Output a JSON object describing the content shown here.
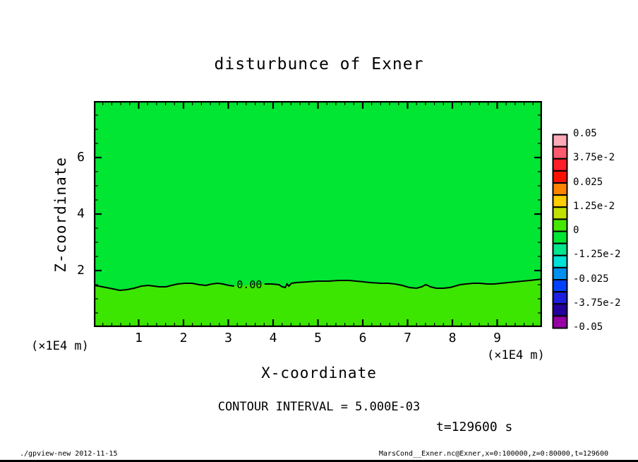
{
  "title": "disturbunce of Exner",
  "axis_x": {
    "label": "X-coordinate",
    "unit": "(×1E4 m)"
  },
  "axis_y": {
    "label": "Z-coordinate",
    "unit": "(×1E4 m)"
  },
  "contour_interval_text": "CONTOUR INTERVAL = 5.000E-03",
  "time_text": "t=129600 s",
  "footer_left": "./gpview-new  2012-11-15",
  "footer_right": "MarsCond__Exner.nc@Exner,x=0:100000,z=0:80000,t=129600",
  "chart_data": {
    "type": "heatmap",
    "subtype": "filled-contour-2d",
    "title": "disturbunce of Exner",
    "xlabel": "X-coordinate",
    "ylabel": "Z-coordinate",
    "x_unit": "×1E4 m",
    "y_unit": "×1E4 m",
    "xlim": [
      0,
      10
    ],
    "ylim": [
      0,
      8
    ],
    "x_major_ticks": [
      1,
      2,
      3,
      4,
      5,
      6,
      7,
      8,
      9
    ],
    "x_minor_step": 0.2,
    "y_major_ticks": [
      2,
      4,
      6
    ],
    "y_minor_step": 0.5,
    "grid": false,
    "contour_interval": 0.005,
    "contour_level": 0.0,
    "contour_label": "0.00",
    "contour_label_x": 3.47,
    "contour_label_z": 1.5,
    "fill_upper_color": "#00e632",
    "fill_lower_color": "#3ce600",
    "zero_contour_left": [
      [
        0.0,
        1.475
      ],
      [
        0.11,
        1.45
      ],
      [
        0.27,
        1.4
      ],
      [
        0.43,
        1.35
      ],
      [
        0.58,
        1.3
      ],
      [
        0.74,
        1.325
      ],
      [
        0.9,
        1.375
      ],
      [
        1.06,
        1.45
      ],
      [
        1.21,
        1.475
      ],
      [
        1.34,
        1.45
      ],
      [
        1.46,
        1.425
      ],
      [
        1.61,
        1.425
      ],
      [
        1.73,
        1.475
      ],
      [
        1.87,
        1.525
      ],
      [
        2.03,
        1.55
      ],
      [
        2.19,
        1.55
      ],
      [
        2.35,
        1.5
      ],
      [
        2.5,
        1.475
      ],
      [
        2.63,
        1.525
      ],
      [
        2.76,
        1.55
      ],
      [
        2.88,
        1.525
      ],
      [
        3.01,
        1.475
      ],
      [
        3.13,
        1.45
      ]
    ],
    "zero_contour_right": [
      [
        3.81,
        1.525
      ],
      [
        3.97,
        1.525
      ],
      [
        4.13,
        1.5
      ],
      [
        4.2,
        1.425
      ],
      [
        4.27,
        1.4
      ],
      [
        4.31,
        1.525
      ],
      [
        4.35,
        1.45
      ],
      [
        4.41,
        1.55
      ],
      [
        4.52,
        1.575
      ],
      [
        4.76,
        1.6
      ],
      [
        4.99,
        1.625
      ],
      [
        5.23,
        1.625
      ],
      [
        5.46,
        1.65
      ],
      [
        5.7,
        1.65
      ],
      [
        5.86,
        1.625
      ],
      [
        6.02,
        1.6
      ],
      [
        6.17,
        1.575
      ],
      [
        6.41,
        1.55
      ],
      [
        6.57,
        1.55
      ],
      [
        6.72,
        1.525
      ],
      [
        6.88,
        1.475
      ],
      [
        7.04,
        1.4
      ],
      [
        7.2,
        1.375
      ],
      [
        7.32,
        1.425
      ],
      [
        7.4,
        1.5
      ],
      [
        7.45,
        1.475
      ],
      [
        7.51,
        1.425
      ],
      [
        7.64,
        1.375
      ],
      [
        7.8,
        1.375
      ],
      [
        7.95,
        1.4
      ],
      [
        8.06,
        1.45
      ],
      [
        8.17,
        1.5
      ],
      [
        8.3,
        1.525
      ],
      [
        8.46,
        1.55
      ],
      [
        8.61,
        1.55
      ],
      [
        8.77,
        1.525
      ],
      [
        8.93,
        1.525
      ],
      [
        9.09,
        1.55
      ],
      [
        9.24,
        1.575
      ],
      [
        9.4,
        1.6
      ],
      [
        9.56,
        1.625
      ],
      [
        9.72,
        1.65
      ],
      [
        9.87,
        1.675
      ],
      [
        10.0,
        1.7
      ]
    ],
    "colorbar": {
      "labels": [
        "0.05",
        "3.75e-2",
        "0.025",
        "1.25e-2",
        "0",
        "-1.25e-2",
        "-0.025",
        "-3.75e-2",
        "-0.05"
      ],
      "values": [
        0.05,
        0.0375,
        0.025,
        0.0125,
        0,
        -0.0125,
        -0.025,
        -0.0375,
        -0.05
      ],
      "cell_colors": [
        "#ffaab9",
        "#ff5a6e",
        "#ff1e28",
        "#ff0f00",
        "#ff8200",
        "#ffcd00",
        "#c3e100",
        "#46e600",
        "#00e632",
        "#00e68c",
        "#00e1d7",
        "#0091f0",
        "#0041ff",
        "#1e1ee1",
        "#23009b",
        "#9600a5"
      ]
    }
  }
}
